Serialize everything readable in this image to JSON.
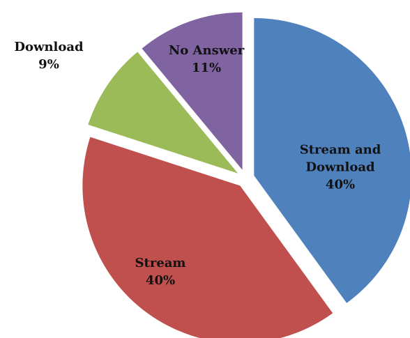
{
  "chart_data": {
    "type": "pie",
    "categories": [
      "Stream and Download",
      "Stream",
      "Download",
      "No Answer"
    ],
    "values": [
      40,
      40,
      9,
      11
    ],
    "value_labels": [
      "40%",
      "40%",
      "9%",
      "11%"
    ],
    "colors": [
      "#4f81bd",
      "#c0504d",
      "#9bbb59",
      "#8064a2"
    ]
  }
}
